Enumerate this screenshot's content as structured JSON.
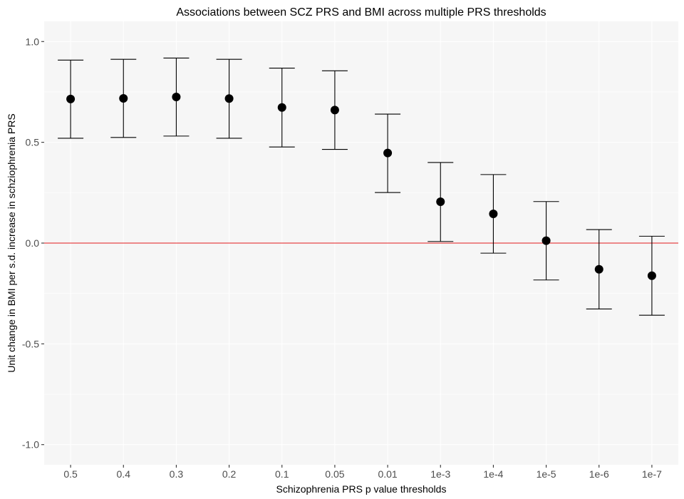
{
  "chart_data": {
    "type": "scatter",
    "subtype": "point-with-error-bars",
    "title": "Associations between SCZ PRS and BMI across multiple PRS thresholds",
    "xlabel": "Schizophrenia PRS p value thresholds",
    "ylabel": "Unit change in BMI per s.d. increase in schziophrenia PRS",
    "categories": [
      "0.5",
      "0.4",
      "0.3",
      "0.2",
      "0.1",
      "0.05",
      "0.01",
      "1e-3",
      "1e-4",
      "1e-5",
      "1e-6",
      "1e-7"
    ],
    "series": [
      {
        "values": [
          0.715,
          0.718,
          0.725,
          0.717,
          0.673,
          0.66,
          0.447,
          0.205,
          0.145,
          0.012,
          -0.13,
          -0.162
        ],
        "lower": [
          0.52,
          0.524,
          0.531,
          0.52,
          0.477,
          0.465,
          0.251,
          0.008,
          -0.05,
          -0.183,
          -0.327,
          -0.358
        ],
        "upper": [
          0.908,
          0.912,
          0.918,
          0.912,
          0.868,
          0.855,
          0.64,
          0.4,
          0.34,
          0.206,
          0.067,
          0.034
        ]
      }
    ],
    "yticks": [
      -1.0,
      -0.5,
      0.0,
      0.5,
      1.0
    ],
    "ytick_labels": [
      "-1.0",
      "-0.5",
      "0.0",
      "0.5",
      "1.0"
    ],
    "ylim": [
      -1.1,
      1.1
    ],
    "reference_line": {
      "y": 0,
      "color": "#e31a1c"
    },
    "grid": true,
    "legend": "none",
    "colors": {
      "panel": "#f6f6f6",
      "grid": "#ffffff",
      "points": "#000000",
      "reference": "#e31a1c"
    }
  }
}
